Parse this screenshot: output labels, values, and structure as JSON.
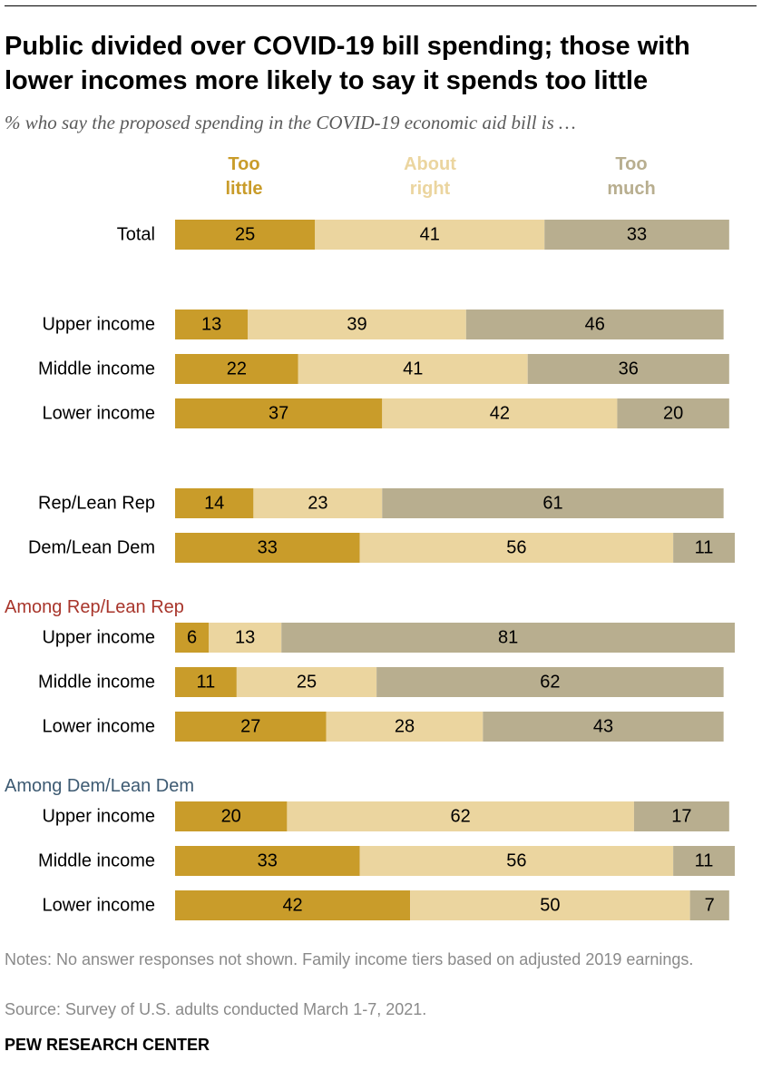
{
  "title": "Public divided over COVID-19 bill spending; those with lower incomes more likely to say it spends too little",
  "subtitle": "% who say the proposed spending in the COVID-19 economic aid bill is …",
  "legend": [
    {
      "line1": "Too",
      "line2": "little"
    },
    {
      "line1": "About",
      "line2": "right"
    },
    {
      "line1": "Too",
      "line2": "much"
    }
  ],
  "colors": {
    "too_little": "#c99c2a",
    "about_right": "#ebd59f",
    "too_much": "#b8ae8f",
    "rep_group": "#a8352b",
    "dem_group": "#3d5a72"
  },
  "chart_data": {
    "type": "bar",
    "orientation": "horizontal",
    "stacked": true,
    "title": "Public divided over COVID-19 bill spending; those with lower incomes more likely to say it spends too little",
    "series_names": [
      "Too little",
      "About right",
      "Too much"
    ],
    "group_labels": [
      "Among Rep/Lean Rep",
      "Among Dem/Lean Dem"
    ],
    "rows": [
      {
        "label": "Total",
        "values": [
          25,
          41,
          33
        ]
      },
      {
        "label": "Upper income",
        "values": [
          13,
          39,
          46
        ]
      },
      {
        "label": "Middle income",
        "values": [
          22,
          41,
          36
        ]
      },
      {
        "label": "Lower income",
        "values": [
          37,
          42,
          20
        ]
      },
      {
        "label": "Rep/Lean Rep",
        "values": [
          14,
          23,
          61
        ]
      },
      {
        "label": "Dem/Lean Dem",
        "values": [
          33,
          56,
          11
        ]
      },
      {
        "label": "Upper income",
        "values": [
          6,
          13,
          81
        ]
      },
      {
        "label": "Middle income",
        "values": [
          11,
          25,
          62
        ]
      },
      {
        "label": "Lower income",
        "values": [
          27,
          28,
          43
        ]
      },
      {
        "label": "Upper income",
        "values": [
          20,
          62,
          17
        ]
      },
      {
        "label": "Middle income",
        "values": [
          33,
          56,
          11
        ]
      },
      {
        "label": "Lower income",
        "values": [
          42,
          50,
          7
        ]
      }
    ]
  },
  "notes": "Notes: No answer responses not shown. Family income tiers based on adjusted 2019 earnings.",
  "source": "Source: Survey of U.S. adults conducted March 1-7, 2021.",
  "brand": "PEW RESEARCH CENTER"
}
